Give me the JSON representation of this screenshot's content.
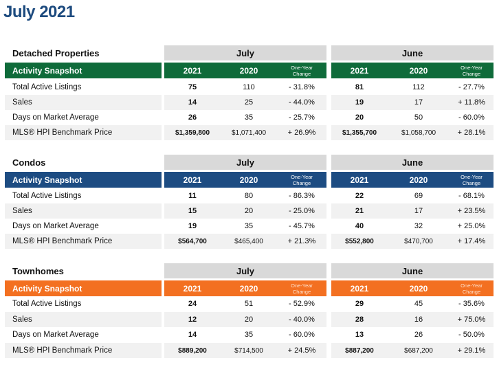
{
  "page_title": "July 2021",
  "columns": {
    "month1": "July",
    "month2": "June",
    "snapshot_label": "Activity Snapshot",
    "year_a": "2021",
    "year_b": "2020",
    "change_line1": "One-Year",
    "change_line2": "Change"
  },
  "colors": {
    "detached": "#0f6b3a",
    "condos": "#1d4c82",
    "townhomes": "#f37021",
    "title": "#1c4a7e"
  },
  "sections": [
    {
      "name": "Detached Properties",
      "rows": [
        {
          "label": "Total Active Listings",
          "values": [
            "75",
            "110",
            "- 31.8%",
            "81",
            "112",
            "- 27.7%"
          ]
        },
        {
          "label": "Sales",
          "values": [
            "14",
            "25",
            "- 44.0%",
            "19",
            "17",
            "+ 11.8%"
          ]
        },
        {
          "label": "Days on Market Average",
          "values": [
            "26",
            "35",
            "- 25.7%",
            "20",
            "50",
            "- 60.0%"
          ]
        },
        {
          "label": "MLS® HPI Benchmark Price",
          "values": [
            "$1,359,800",
            "$1,071,400",
            "+ 26.9%",
            "$1,355,700",
            "$1,058,700",
            "+ 28.1%"
          ]
        }
      ]
    },
    {
      "name": "Condos",
      "rows": [
        {
          "label": "Total Active Listings",
          "values": [
            "11",
            "80",
            "- 86.3%",
            "22",
            "69",
            "- 68.1%"
          ]
        },
        {
          "label": "Sales",
          "values": [
            "15",
            "20",
            "- 25.0%",
            "21",
            "17",
            "+ 23.5%"
          ]
        },
        {
          "label": "Days on Market Average",
          "values": [
            "19",
            "35",
            "- 45.7%",
            "40",
            "32",
            "+ 25.0%"
          ]
        },
        {
          "label": "MLS® HPI Benchmark Price",
          "values": [
            "$564,700",
            "$465,400",
            "+ 21.3%",
            "$552,800",
            "$470,700",
            "+ 17.4%"
          ]
        }
      ]
    },
    {
      "name": "Townhomes",
      "rows": [
        {
          "label": "Total Active Listings",
          "values": [
            "24",
            "51",
            "- 52.9%",
            "29",
            "45",
            "- 35.6%"
          ]
        },
        {
          "label": "Sales",
          "values": [
            "12",
            "20",
            "- 40.0%",
            "28",
            "16",
            "+ 75.0%"
          ]
        },
        {
          "label": "Days on Market Average",
          "values": [
            "14",
            "35",
            "- 60.0%",
            "13",
            "26",
            "- 50.0%"
          ]
        },
        {
          "label": "MLS® HPI Benchmark Price",
          "values": [
            "$889,200",
            "$714,500",
            "+ 24.5%",
            "$887,200",
            "$687,200",
            "+ 29.1%"
          ]
        }
      ]
    }
  ]
}
